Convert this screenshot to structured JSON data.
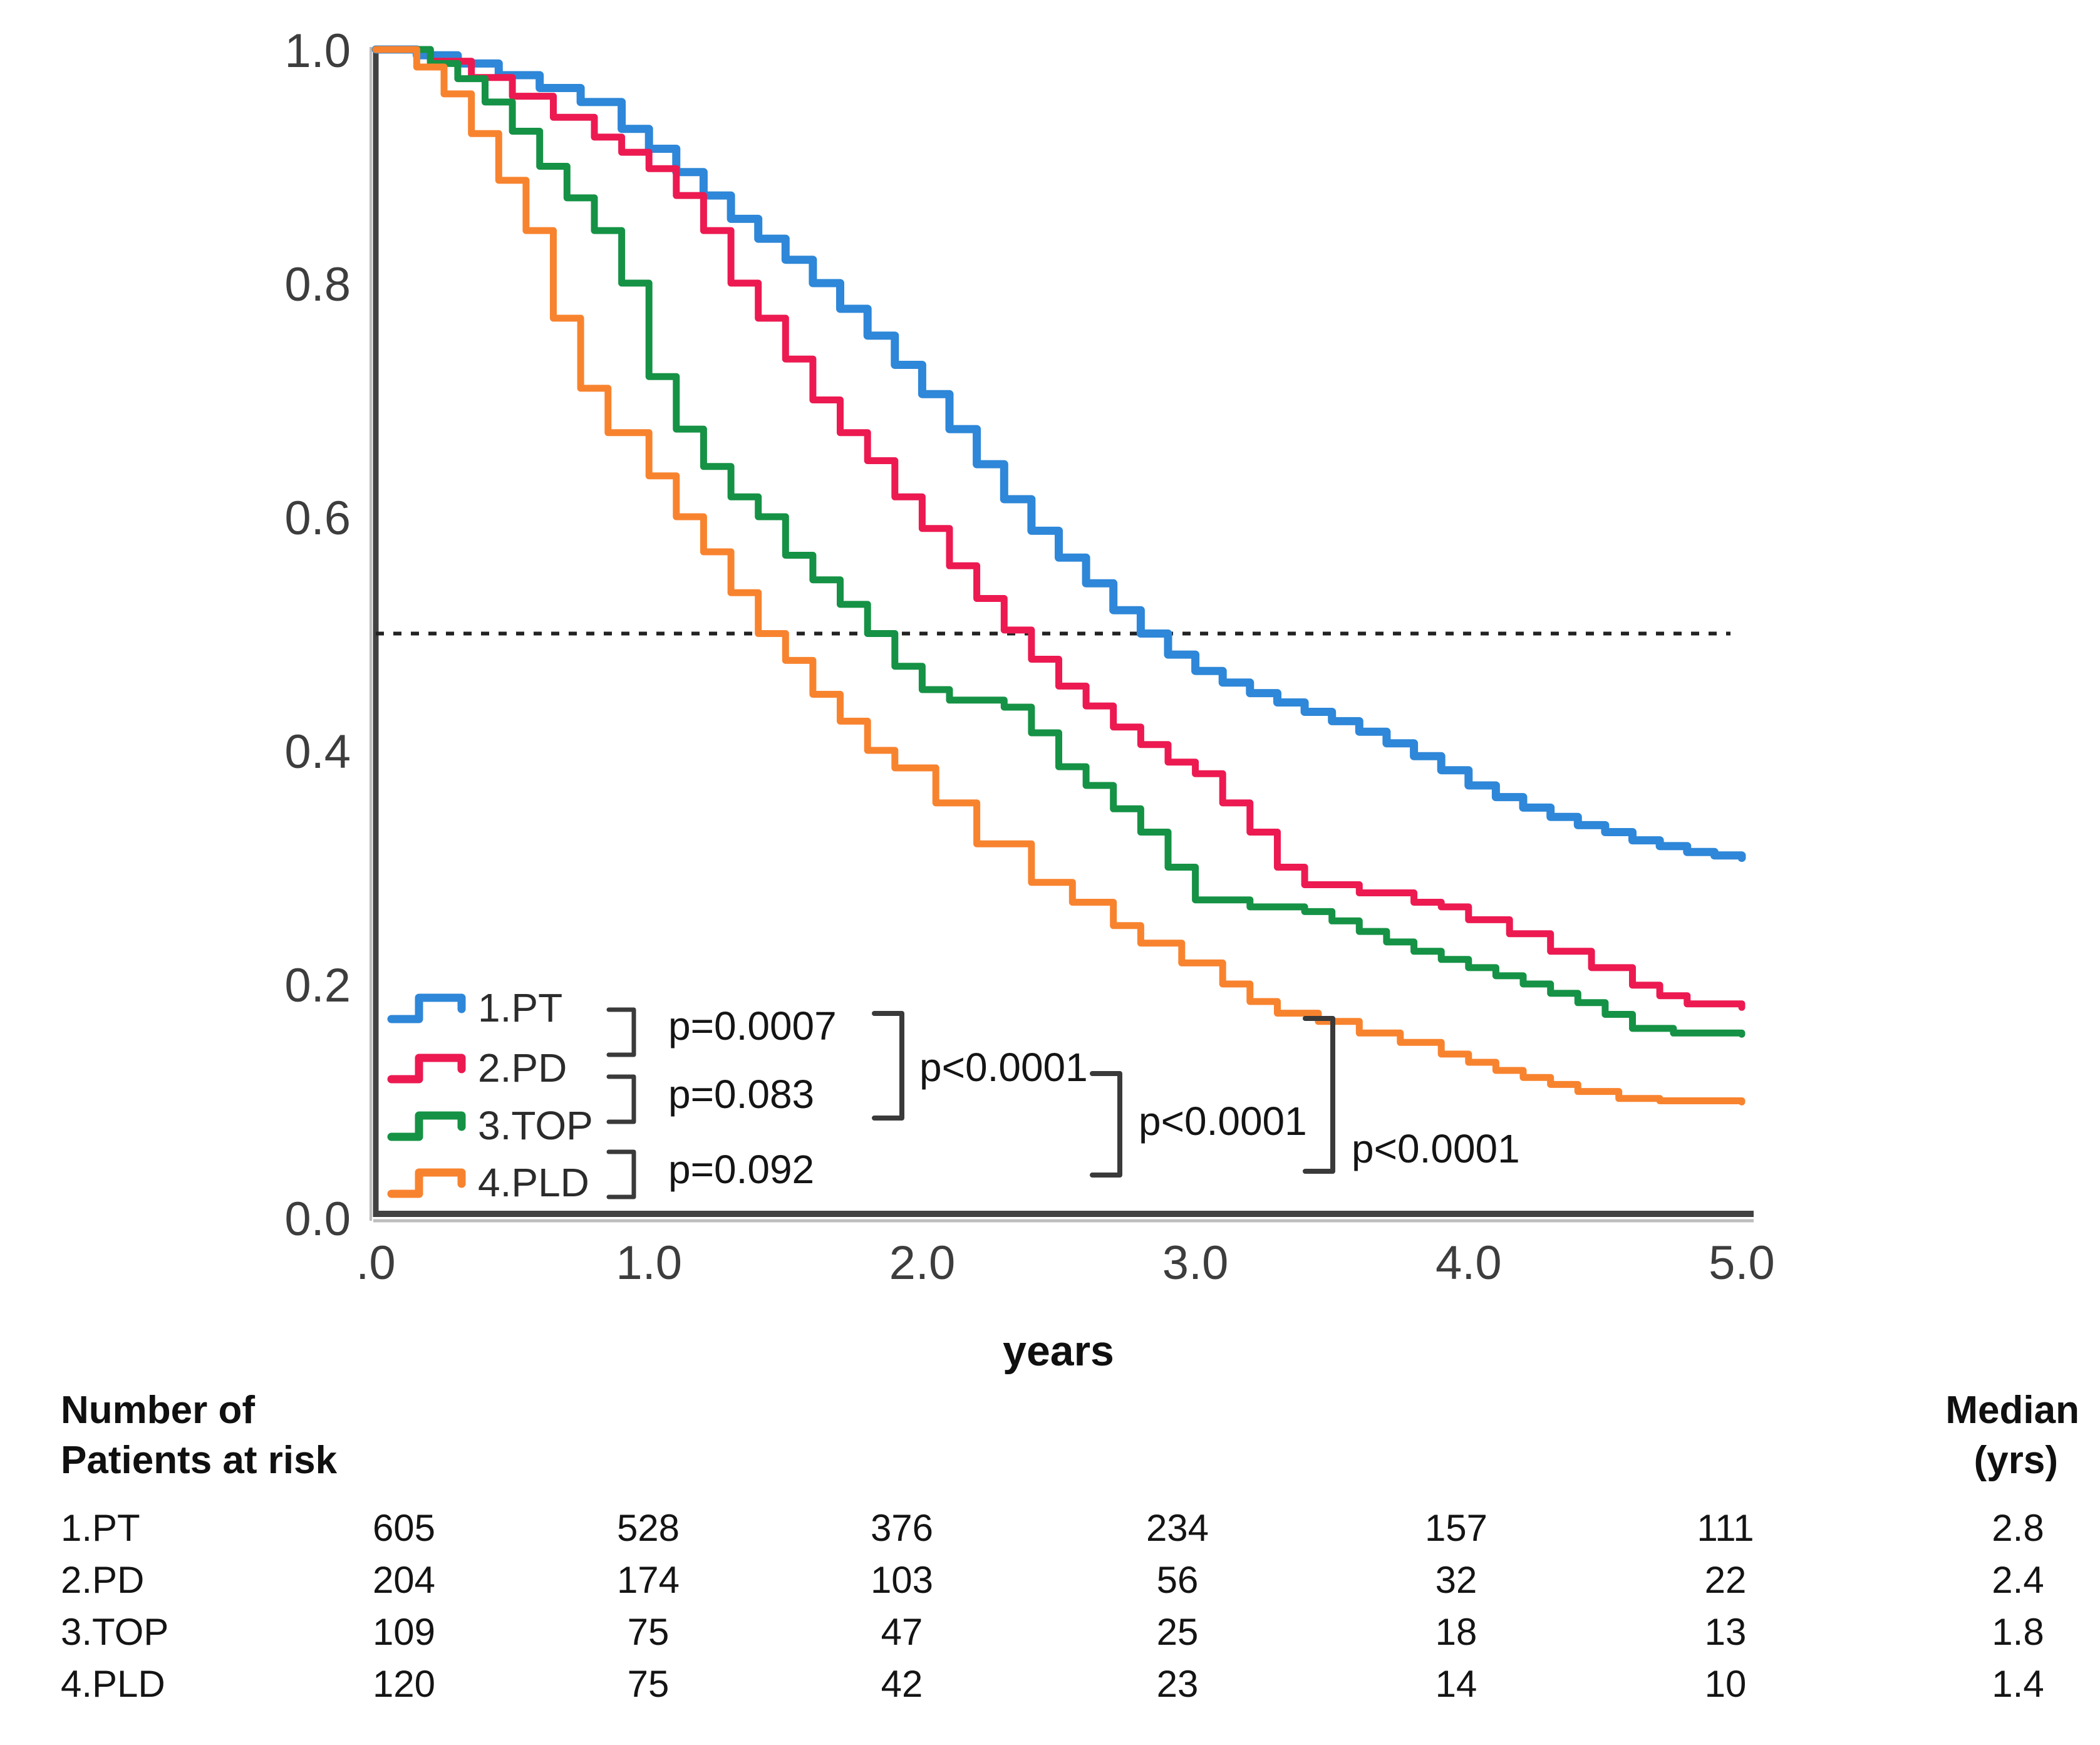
{
  "figure": {
    "background": "#ffffff"
  },
  "chart": {
    "xlabel": "years",
    "y_ticks": [
      {
        "label": "1.0",
        "value": 1.0
      },
      {
        "label": "0.8",
        "value": 0.8
      },
      {
        "label": "0.6",
        "value": 0.6
      },
      {
        "label": "0.4",
        "value": 0.4
      },
      {
        "label": "0.2",
        "value": 0.2
      },
      {
        "label": "0.0",
        "value": 0.0
      }
    ],
    "x_ticks": [
      {
        "label": ".0",
        "value": 0
      },
      {
        "label": "1.0",
        "value": 1
      },
      {
        "label": "2.0",
        "value": 2
      },
      {
        "label": "3.0",
        "value": 3
      },
      {
        "label": "4.0",
        "value": 4
      },
      {
        "label": "5.0",
        "value": 5
      }
    ]
  },
  "chart_data": {
    "type": "line",
    "variant": "kaplan_meier_step",
    "title": "",
    "xlabel": "years",
    "ylabel": "",
    "xlim": [
      0,
      5
    ],
    "ylim": [
      0,
      1
    ],
    "grid": false,
    "legend_position": "lower-left-inside",
    "reference_line": {
      "y": 0.5,
      "style": "dashed",
      "color": "#222222"
    },
    "series": [
      {
        "name": "1.PT",
        "color": "#2E87D8",
        "median_yrs": "2.8",
        "x": [
          0,
          0.15,
          0.3,
          0.45,
          0.6,
          0.75,
          0.9,
          1.0,
          1.1,
          1.2,
          1.3,
          1.4,
          1.5,
          1.6,
          1.7,
          1.8,
          1.9,
          2.0,
          2.1,
          2.2,
          2.3,
          2.4,
          2.5,
          2.6,
          2.7,
          2.8,
          2.9,
          3.0,
          3.1,
          3.2,
          3.3,
          3.4,
          3.5,
          3.6,
          3.7,
          3.8,
          3.9,
          4.0,
          4.1,
          4.2,
          4.3,
          4.4,
          4.5,
          4.6,
          4.7,
          4.8,
          4.9,
          5.0
        ],
        "y": [
          1.0,
          0.995,
          0.988,
          0.978,
          0.967,
          0.955,
          0.932,
          0.915,
          0.895,
          0.875,
          0.855,
          0.838,
          0.82,
          0.8,
          0.778,
          0.755,
          0.73,
          0.705,
          0.675,
          0.645,
          0.615,
          0.588,
          0.565,
          0.543,
          0.52,
          0.5,
          0.482,
          0.468,
          0.458,
          0.449,
          0.441,
          0.433,
          0.425,
          0.416,
          0.406,
          0.395,
          0.383,
          0.37,
          0.36,
          0.351,
          0.343,
          0.336,
          0.33,
          0.323,
          0.318,
          0.313,
          0.31,
          0.308
        ]
      },
      {
        "name": "2.PD",
        "color": "#EC1A51",
        "median_yrs": "2.4",
        "x": [
          0,
          0.2,
          0.35,
          0.5,
          0.65,
          0.8,
          0.9,
          1.0,
          1.1,
          1.2,
          1.3,
          1.4,
          1.5,
          1.6,
          1.7,
          1.8,
          1.9,
          2.0,
          2.1,
          2.2,
          2.3,
          2.4,
          2.5,
          2.6,
          2.7,
          2.8,
          2.9,
          3.0,
          3.1,
          3.2,
          3.3,
          3.4,
          3.6,
          3.8,
          3.9,
          4.0,
          4.15,
          4.3,
          4.45,
          4.6,
          4.7,
          4.8,
          5.0
        ],
        "y": [
          1.0,
          0.99,
          0.976,
          0.96,
          0.942,
          0.925,
          0.912,
          0.898,
          0.875,
          0.845,
          0.8,
          0.77,
          0.735,
          0.7,
          0.672,
          0.648,
          0.617,
          0.59,
          0.558,
          0.53,
          0.503,
          0.478,
          0.455,
          0.438,
          0.42,
          0.405,
          0.39,
          0.38,
          0.355,
          0.33,
          0.3,
          0.285,
          0.278,
          0.27,
          0.266,
          0.255,
          0.243,
          0.228,
          0.214,
          0.199,
          0.19,
          0.183,
          0.18
        ]
      },
      {
        "name": "3.TOP",
        "color": "#159245",
        "median_yrs": "1.8",
        "x": [
          0,
          0.2,
          0.3,
          0.4,
          0.5,
          0.6,
          0.7,
          0.8,
          0.9,
          1.0,
          1.1,
          1.2,
          1.3,
          1.4,
          1.5,
          1.6,
          1.7,
          1.8,
          1.9,
          2.0,
          2.1,
          2.3,
          2.4,
          2.5,
          2.6,
          2.7,
          2.8,
          2.9,
          3.0,
          3.2,
          3.4,
          3.5,
          3.6,
          3.7,
          3.8,
          3.9,
          4.0,
          4.1,
          4.2,
          4.3,
          4.4,
          4.5,
          4.6,
          4.75,
          5.0
        ],
        "y": [
          1.0,
          0.988,
          0.975,
          0.955,
          0.93,
          0.9,
          0.873,
          0.845,
          0.8,
          0.72,
          0.675,
          0.643,
          0.617,
          0.6,
          0.567,
          0.546,
          0.525,
          0.5,
          0.472,
          0.452,
          0.443,
          0.437,
          0.415,
          0.386,
          0.37,
          0.35,
          0.33,
          0.3,
          0.272,
          0.266,
          0.262,
          0.254,
          0.245,
          0.236,
          0.228,
          0.221,
          0.214,
          0.207,
          0.2,
          0.192,
          0.184,
          0.174,
          0.162,
          0.158,
          0.157
        ]
      },
      {
        "name": "4.PLD",
        "color": "#F8832F",
        "median_yrs": "1.4",
        "x": [
          0,
          0.15,
          0.25,
          0.35,
          0.45,
          0.55,
          0.65,
          0.75,
          0.85,
          1.0,
          1.1,
          1.2,
          1.3,
          1.4,
          1.5,
          1.6,
          1.7,
          1.8,
          1.9,
          2.05,
          2.2,
          2.4,
          2.55,
          2.7,
          2.8,
          2.95,
          3.1,
          3.2,
          3.3,
          3.45,
          3.6,
          3.75,
          3.9,
          4.0,
          4.1,
          4.2,
          4.3,
          4.4,
          4.55,
          4.7,
          5.0
        ],
        "y": [
          1.0,
          0.985,
          0.962,
          0.928,
          0.888,
          0.845,
          0.77,
          0.71,
          0.672,
          0.635,
          0.6,
          0.57,
          0.535,
          0.5,
          0.477,
          0.448,
          0.425,
          0.4,
          0.385,
          0.355,
          0.32,
          0.287,
          0.27,
          0.25,
          0.235,
          0.218,
          0.2,
          0.185,
          0.175,
          0.168,
          0.158,
          0.15,
          0.14,
          0.133,
          0.126,
          0.12,
          0.114,
          0.108,
          0.102,
          0.1,
          0.099
        ]
      }
    ],
    "pairwise_annotations": [
      {
        "id": "bracket-1pt-2pd",
        "label": "p=0.0007"
      },
      {
        "id": "bracket-2pd-3top",
        "label": "p=0.083"
      },
      {
        "id": "bracket-3top-4pld",
        "label": "p=0.092"
      },
      {
        "id": "bracket-wide-1",
        "label": "p<0.0001"
      },
      {
        "id": "bracket-wide-2",
        "label": "p<0.0001"
      },
      {
        "id": "bracket-wide-3",
        "label": "p<0.0001"
      }
    ]
  },
  "legend": {
    "items": [
      {
        "label": "1.PT",
        "color": "#2E87D8"
      },
      {
        "label": "2.PD",
        "color": "#EC1A51"
      },
      {
        "label": "3.TOP",
        "color": "#159245"
      },
      {
        "label": "4.PLD",
        "color": "#F8832F"
      }
    ]
  },
  "risk_table": {
    "header_line1": "Number of",
    "header_line2": "Patients at risk",
    "median_header_line1": "Median",
    "median_header_line2": "(yrs)",
    "times": [
      0,
      1,
      2,
      3,
      4,
      5
    ],
    "rows": [
      {
        "label": "1.PT",
        "counts": [
          "605",
          "528",
          "376",
          "234",
          "157",
          "111"
        ],
        "median": "2.8"
      },
      {
        "label": "2.PD",
        "counts": [
          "204",
          "174",
          "103",
          "56",
          "32",
          "22"
        ],
        "median": "2.4"
      },
      {
        "label": "3.TOP",
        "counts": [
          "109",
          "75",
          "47",
          "25",
          "18",
          "13"
        ],
        "median": "1.8"
      },
      {
        "label": "4.PLD",
        "counts": [
          "120",
          "75",
          "42",
          "23",
          "14",
          "10"
        ],
        "median": "1.4"
      }
    ]
  }
}
